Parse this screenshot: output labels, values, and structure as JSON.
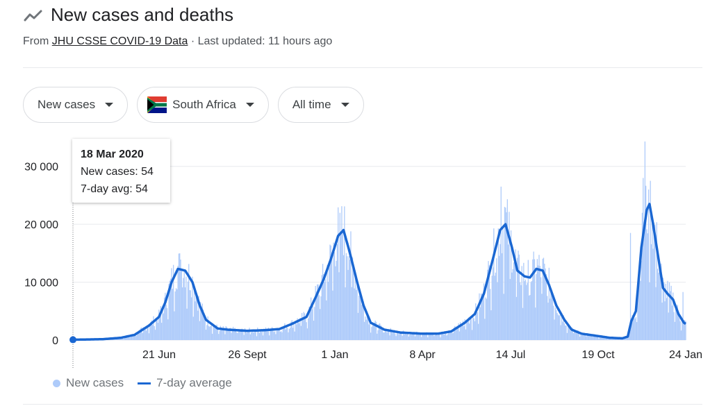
{
  "header": {
    "title": "New cases and deaths",
    "source_prefix": "From",
    "source_link": "JHU CSSE COVID-19 Data",
    "updated": "· Last updated: 11 hours ago",
    "icon": "trending-up-icon"
  },
  "filters": {
    "metric": "New cases",
    "country": "South Africa",
    "range": "All time"
  },
  "tooltip": {
    "date": "18 Mar 2020",
    "new_cases": "New cases: 54",
    "avg": "7-day avg: 54"
  },
  "legend": {
    "bars": "New cases",
    "line": "7-day average"
  },
  "colors": {
    "bars": "#aecbfa",
    "line": "#1a67d2",
    "grid": "#e8eaed",
    "text": "#202124",
    "muted": "#70757a"
  },
  "chart_data": {
    "type": "bar",
    "overlay": "line",
    "title": "",
    "xlabel": "",
    "ylabel": "",
    "x_ticks": [
      "21 Jun",
      "26 Sept",
      "1 Jan",
      "8 Apr",
      "14 Jul",
      "19 Oct",
      "24 Jan"
    ],
    "y_ticks": [
      "0",
      "10 000",
      "20 000",
      "30 000"
    ],
    "y_tick_values": [
      0,
      10000,
      20000,
      30000
    ],
    "ylim": [
      0,
      35000
    ],
    "grid": true,
    "x_start_date": "2020-03-18",
    "x_end_date": "2022-01-24",
    "series": [
      {
        "name": "7-day average",
        "type": "line",
        "points": [
          [
            "2020-03-18",
            54
          ],
          [
            "2020-04-01",
            100
          ],
          [
            "2020-04-20",
            150
          ],
          [
            "2020-05-10",
            400
          ],
          [
            "2020-05-25",
            900
          ],
          [
            "2020-06-10",
            2500
          ],
          [
            "2020-06-21",
            4000
          ],
          [
            "2020-06-28",
            6500
          ],
          [
            "2020-07-05",
            10000
          ],
          [
            "2020-07-12",
            12300
          ],
          [
            "2020-07-20",
            12000
          ],
          [
            "2020-07-28",
            10000
          ],
          [
            "2020-08-05",
            6000
          ],
          [
            "2020-08-12",
            3500
          ],
          [
            "2020-08-25",
            2000
          ],
          [
            "2020-09-05",
            1800
          ],
          [
            "2020-09-26",
            1600
          ],
          [
            "2020-10-15",
            1700
          ],
          [
            "2020-11-01",
            1900
          ],
          [
            "2020-11-15",
            2800
          ],
          [
            "2020-12-01",
            4000
          ],
          [
            "2020-12-10",
            7000
          ],
          [
            "2020-12-20",
            10500
          ],
          [
            "2020-12-28",
            14000
          ],
          [
            "2021-01-05",
            18000
          ],
          [
            "2021-01-11",
            19000
          ],
          [
            "2021-01-18",
            15000
          ],
          [
            "2021-01-26",
            10000
          ],
          [
            "2021-02-02",
            6000
          ],
          [
            "2021-02-10",
            3000
          ],
          [
            "2021-02-25",
            1800
          ],
          [
            "2021-03-15",
            1300
          ],
          [
            "2021-04-08",
            1100
          ],
          [
            "2021-04-25",
            1100
          ],
          [
            "2021-05-10",
            1500
          ],
          [
            "2021-05-25",
            3000
          ],
          [
            "2021-06-05",
            4500
          ],
          [
            "2021-06-15",
            8000
          ],
          [
            "2021-06-25",
            14000
          ],
          [
            "2021-07-03",
            19000
          ],
          [
            "2021-07-09",
            20000
          ],
          [
            "2021-07-16",
            16000
          ],
          [
            "2021-07-22",
            12000
          ],
          [
            "2021-07-30",
            11000
          ],
          [
            "2021-08-05",
            10800
          ],
          [
            "2021-08-12",
            12300
          ],
          [
            "2021-08-19",
            12000
          ],
          [
            "2021-08-26",
            9500
          ],
          [
            "2021-09-03",
            6000
          ],
          [
            "2021-09-12",
            3500
          ],
          [
            "2021-09-20",
            1800
          ],
          [
            "2021-10-01",
            1100
          ],
          [
            "2021-10-19",
            700
          ],
          [
            "2021-11-01",
            400
          ],
          [
            "2021-11-15",
            300
          ],
          [
            "2021-11-21",
            600
          ],
          [
            "2021-11-25",
            3300
          ],
          [
            "2021-11-30",
            5000
          ],
          [
            "2021-12-06",
            16000
          ],
          [
            "2021-12-12",
            22500
          ],
          [
            "2021-12-15",
            23500
          ],
          [
            "2021-12-19",
            20000
          ],
          [
            "2021-12-24",
            15000
          ],
          [
            "2021-12-30",
            9000
          ],
          [
            "2022-01-04",
            8000
          ],
          [
            "2022-01-10",
            7000
          ],
          [
            "2022-01-16",
            4500
          ],
          [
            "2022-01-22",
            3000
          ],
          [
            "2022-01-24",
            2800
          ]
        ]
      },
      {
        "name": "New cases",
        "type": "bar",
        "note_values": "daily bars approximated as 7-day average with reporting noise; spikes listed",
        "spikes": [
          [
            "2020-07-15",
            13900
          ],
          [
            "2021-01-07",
            21980
          ],
          [
            "2021-07-04",
            26500
          ],
          [
            "2021-07-08",
            23000
          ],
          [
            "2021-11-24",
            18500
          ],
          [
            "2021-12-10",
            34300
          ],
          [
            "2021-12-14",
            26000
          ],
          [
            "2021-12-08",
            28000
          ],
          [
            "2022-01-21",
            8300
          ]
        ]
      }
    ]
  }
}
